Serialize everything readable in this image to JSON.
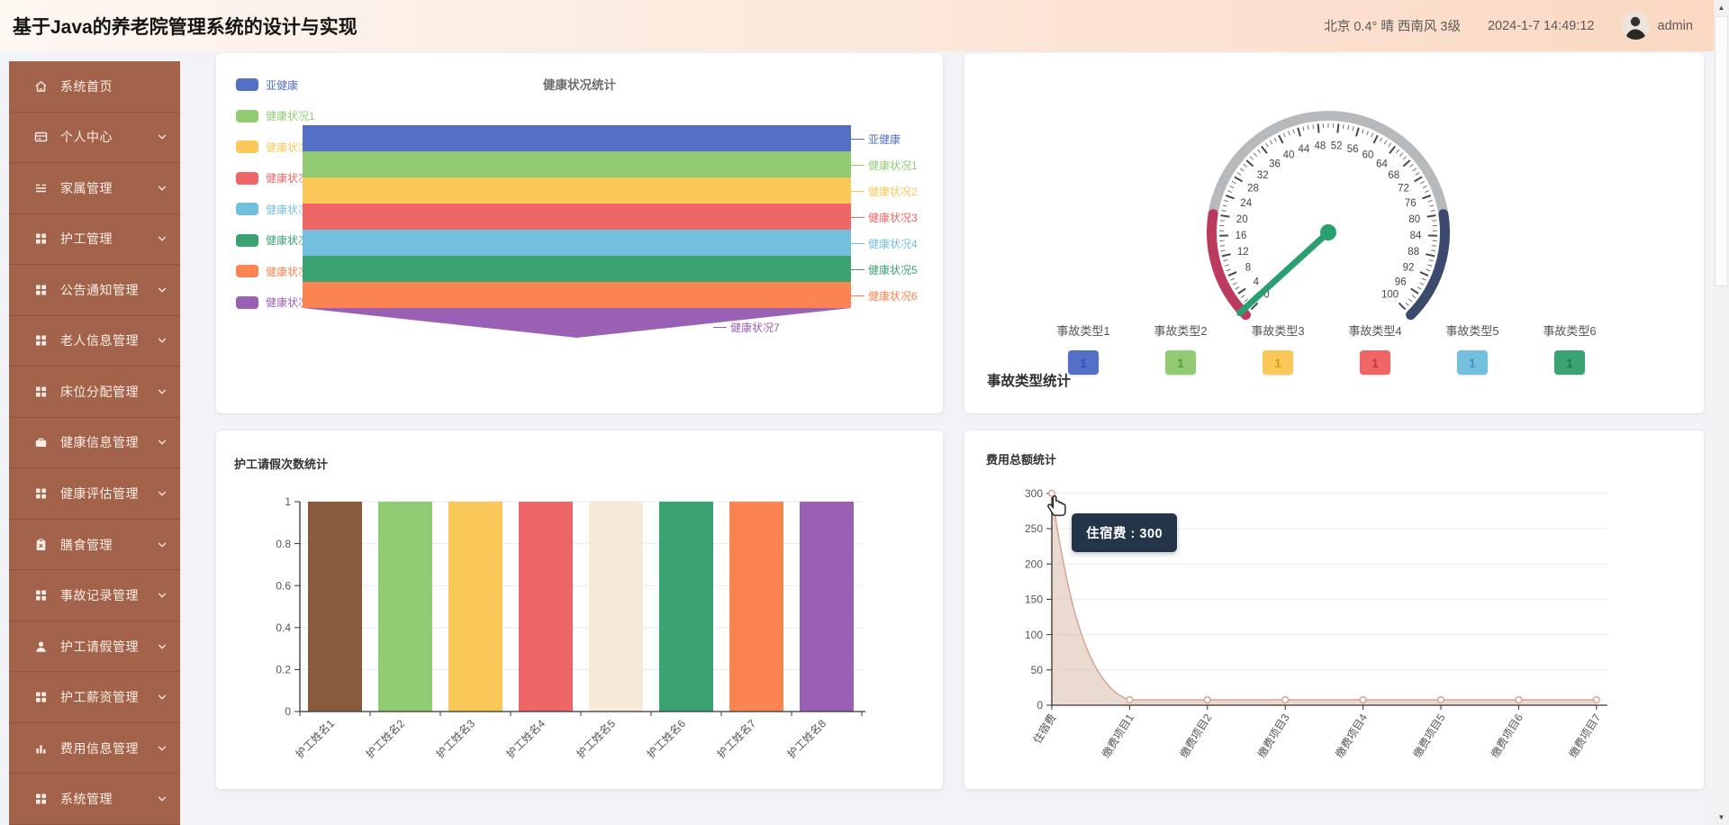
{
  "header": {
    "title": "基于Java的养老院管理系统的设计与实现",
    "weather": "北京  0.4°  晴  西南风  3级",
    "datetime": "2024-1-7 14:49:12",
    "username": "admin"
  },
  "sidebar": {
    "items": [
      {
        "label": "系统首页",
        "icon": "home-icon",
        "expandable": false
      },
      {
        "label": "个人中心",
        "icon": "id-card-icon",
        "expandable": true
      },
      {
        "label": "家属管理",
        "icon": "menu-list-icon",
        "expandable": true
      },
      {
        "label": "护工管理",
        "icon": "grid-icon",
        "expandable": true
      },
      {
        "label": "公告通知管理",
        "icon": "grid-icon",
        "expandable": true
      },
      {
        "label": "老人信息管理",
        "icon": "grid-icon",
        "expandable": true
      },
      {
        "label": "床位分配管理",
        "icon": "grid-icon",
        "expandable": true
      },
      {
        "label": "健康信息管理",
        "icon": "briefcase-icon",
        "expandable": true
      },
      {
        "label": "健康评估管理",
        "icon": "grid-icon",
        "expandable": true
      },
      {
        "label": "膳食管理",
        "icon": "clipboard-icon",
        "expandable": true
      },
      {
        "label": "事故记录管理",
        "icon": "grid-icon",
        "expandable": true
      },
      {
        "label": "护工请假管理",
        "icon": "user-icon",
        "expandable": true
      },
      {
        "label": "护工薪资管理",
        "icon": "grid-icon",
        "expandable": true
      },
      {
        "label": "费用信息管理",
        "icon": "bar-chart-icon",
        "expandable": true
      },
      {
        "label": "系统管理",
        "icon": "grid-icon",
        "expandable": true
      }
    ]
  },
  "chart_data": [
    {
      "id": "health-funnel",
      "type": "funnel",
      "title": "健康状况统计",
      "legend_position": "left",
      "categories": [
        "亚健康",
        "健康状况1",
        "健康状况2",
        "健康状况3",
        "健康状况4",
        "健康状况5",
        "健康状况6",
        "健康状况7"
      ],
      "values": [
        1,
        1,
        1,
        1,
        1,
        1,
        1,
        1
      ],
      "colors": [
        "#5470c6",
        "#91cc75",
        "#fac858",
        "#ee6666",
        "#73c0de",
        "#3ba272",
        "#fc8452",
        "#9a60b4"
      ]
    },
    {
      "id": "accident-gauge",
      "type": "gauge",
      "title": "事故类型统计",
      "min": 0,
      "max": 100,
      "label_step": 4,
      "needle_value": 1,
      "needle_color": "#2aa06e",
      "zones": [
        {
          "to": 20,
          "color": "#bb3a5e"
        },
        {
          "to": 80,
          "color": "#b7babd"
        },
        {
          "to": 100,
          "color": "#3c4a6d"
        }
      ],
      "items": [
        {
          "label": "事故类型1",
          "value": 1,
          "color": "#5470c6",
          "value_color": "#2b50c8"
        },
        {
          "label": "事故类型2",
          "value": 1,
          "color": "#91cc75",
          "value_color": "#55a03c"
        },
        {
          "label": "事故类型3",
          "value": 1,
          "color": "#fac858",
          "value_color": "#d89b1e"
        },
        {
          "label": "事故类型4",
          "value": 1,
          "color": "#ee6666",
          "value_color": "#c93535"
        },
        {
          "label": "事故类型5",
          "value": 1,
          "color": "#73c0de",
          "value_color": "#3e97c2"
        },
        {
          "label": "事故类型6",
          "value": 1,
          "color": "#3ba272",
          "value_color": "#1e7b52"
        }
      ]
    },
    {
      "id": "caregiver-leave-bar",
      "type": "bar",
      "title": "护工请假次数统计",
      "categories": [
        "护工姓名1",
        "护工姓名2",
        "护工姓名3",
        "护工姓名4",
        "护工姓名5",
        "护工姓名6",
        "护工姓名7",
        "护工姓名8"
      ],
      "values": [
        1,
        1,
        1,
        1,
        1,
        1,
        1,
        1
      ],
      "ylim": [
        0,
        1
      ],
      "yticks": [
        "0",
        "0.2",
        "0.4",
        "0.6",
        "0.8",
        "1"
      ],
      "colors": [
        "#8a5a3d",
        "#91cc75",
        "#fac858",
        "#ee6666",
        "#f6e9d8",
        "#3ba272",
        "#fc8452",
        "#9a60b4"
      ]
    },
    {
      "id": "fee-total-area",
      "type": "area",
      "title": "费用总额统计",
      "categories": [
        "住宿费",
        "缴费项目1",
        "缴费项目2",
        "缴费项目3",
        "缴费项目4",
        "缴费项目5",
        "缴费项目6",
        "缴费项目7"
      ],
      "values": [
        300,
        0,
        0,
        0,
        0,
        0,
        0,
        0
      ],
      "ylim": [
        0,
        300
      ],
      "yticks": [
        "0",
        "50",
        "100",
        "150",
        "200",
        "250",
        "300"
      ],
      "line_color": "#d7a493",
      "area_color": "rgba(216,188,170,0.55)",
      "tooltip": {
        "text": "住宿费 : 300",
        "bg": "#24354a"
      }
    }
  ],
  "scrollbar": {
    "up_glyph": "▲",
    "down_glyph": "▼"
  }
}
